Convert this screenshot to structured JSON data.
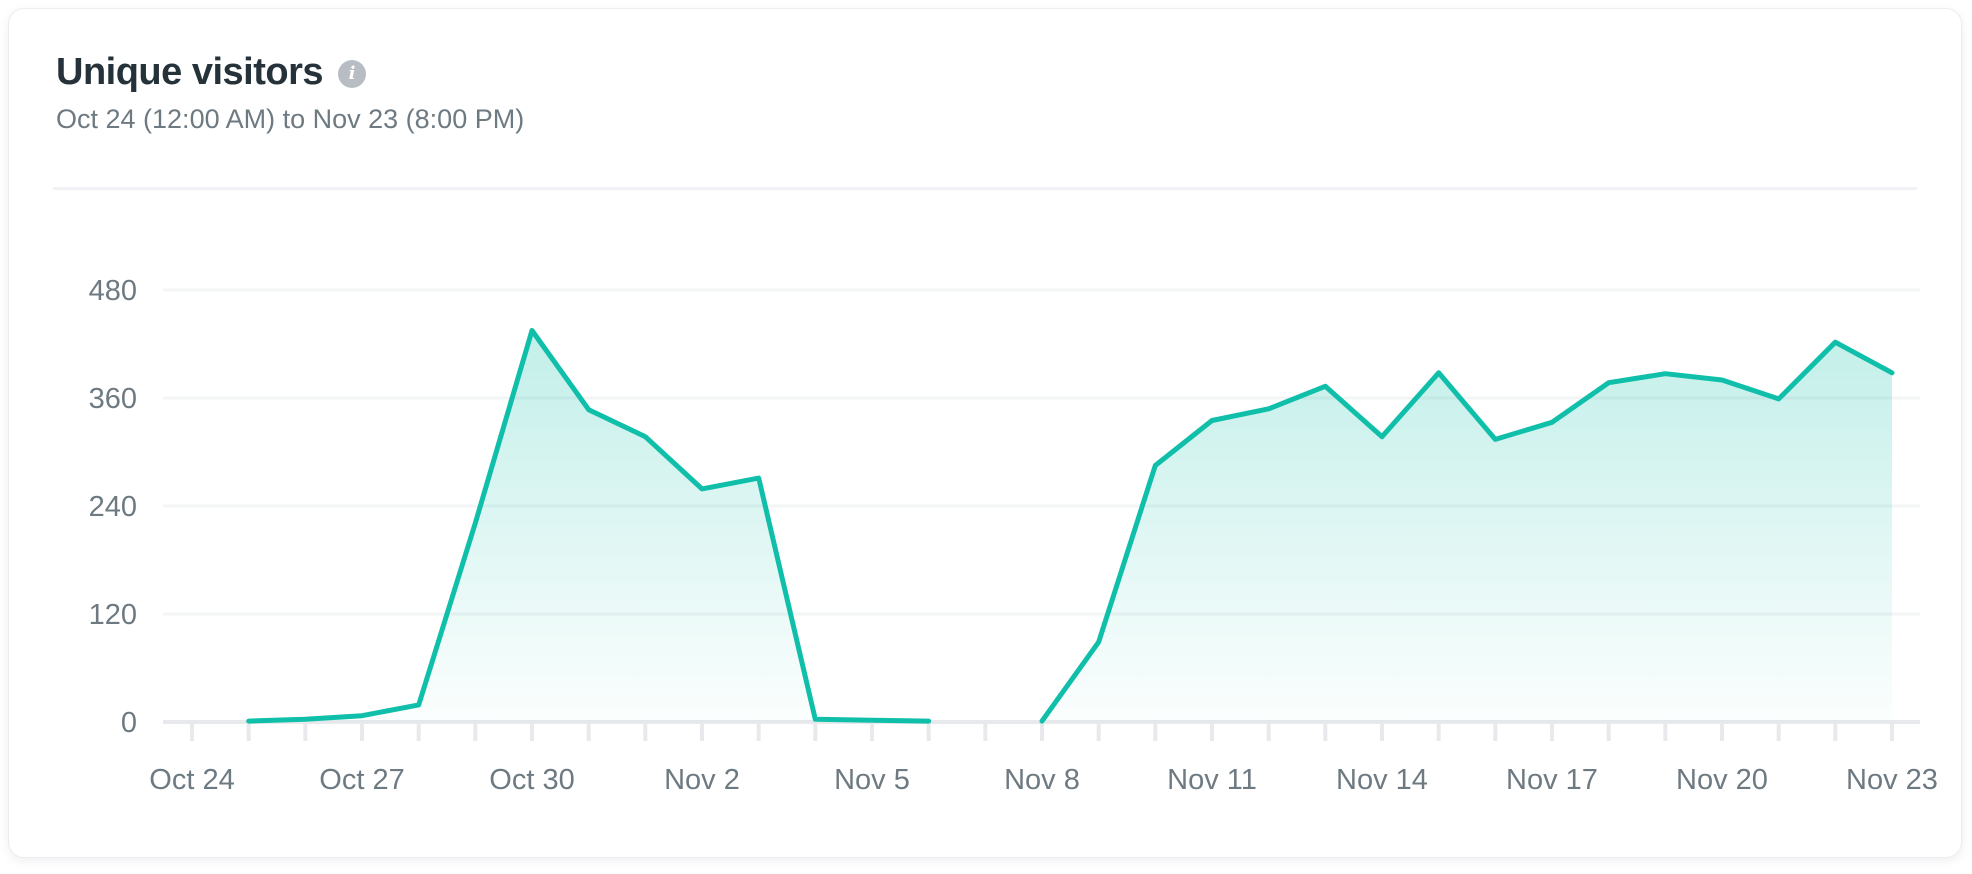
{
  "card": {
    "title": "Unique visitors",
    "info_tooltip_glyph": "i",
    "date_range": "Oct 24 (12:00 AM) to Nov 23 (8:00 PM)"
  },
  "theme": {
    "accent": "#10bfa9",
    "title_color": "#26323a",
    "subtitle_color": "#6e7a82",
    "card_border": "#ebedf0"
  },
  "chart_data": {
    "type": "area",
    "title": "Unique visitors",
    "xlabel": "",
    "ylabel": "",
    "categories": [
      "Oct 24",
      "Oct 25",
      "Oct 26",
      "Oct 27",
      "Oct 28",
      "Oct 29",
      "Oct 30",
      "Oct 31",
      "Nov 1",
      "Nov 2",
      "Nov 3",
      "Nov 4",
      "Nov 5",
      "Nov 6",
      "Nov 7",
      "Nov 8",
      "Nov 9",
      "Nov 10",
      "Nov 11",
      "Nov 12",
      "Nov 13",
      "Nov 14",
      "Nov 15",
      "Nov 16",
      "Nov 17",
      "Nov 18",
      "Nov 19",
      "Nov 20",
      "Nov 21",
      "Nov 22",
      "Nov 23"
    ],
    "values": [
      null,
      1,
      3,
      7,
      19,
      221,
      435,
      347,
      317,
      259,
      271,
      3,
      2,
      1,
      null,
      1,
      89,
      285,
      335,
      348,
      373,
      317,
      388,
      314,
      333,
      377,
      387,
      380,
      359,
      422,
      388
    ],
    "x_tick_label_every": 3,
    "x_tick_labels": [
      "Oct 24",
      "Oct 27",
      "Oct 30",
      "Nov 2",
      "Nov 5",
      "Nov 8",
      "Nov 11",
      "Nov 14",
      "Nov 17",
      "Nov 20",
      "Nov 23"
    ],
    "y_ticks": [
      0,
      120,
      240,
      360,
      480
    ],
    "ylim": [
      0,
      520
    ],
    "grid": "horizontal",
    "legend": "none",
    "line_color": "#10bfa9",
    "area_top_color": "rgba(16,191,169,0.28)",
    "area_bottom_color": "rgba(16,191,169,0.015)",
    "grid_color": "#f3f4f6",
    "axis_color": "#e7e9ec",
    "tick_label_color": "#6e7a82"
  }
}
